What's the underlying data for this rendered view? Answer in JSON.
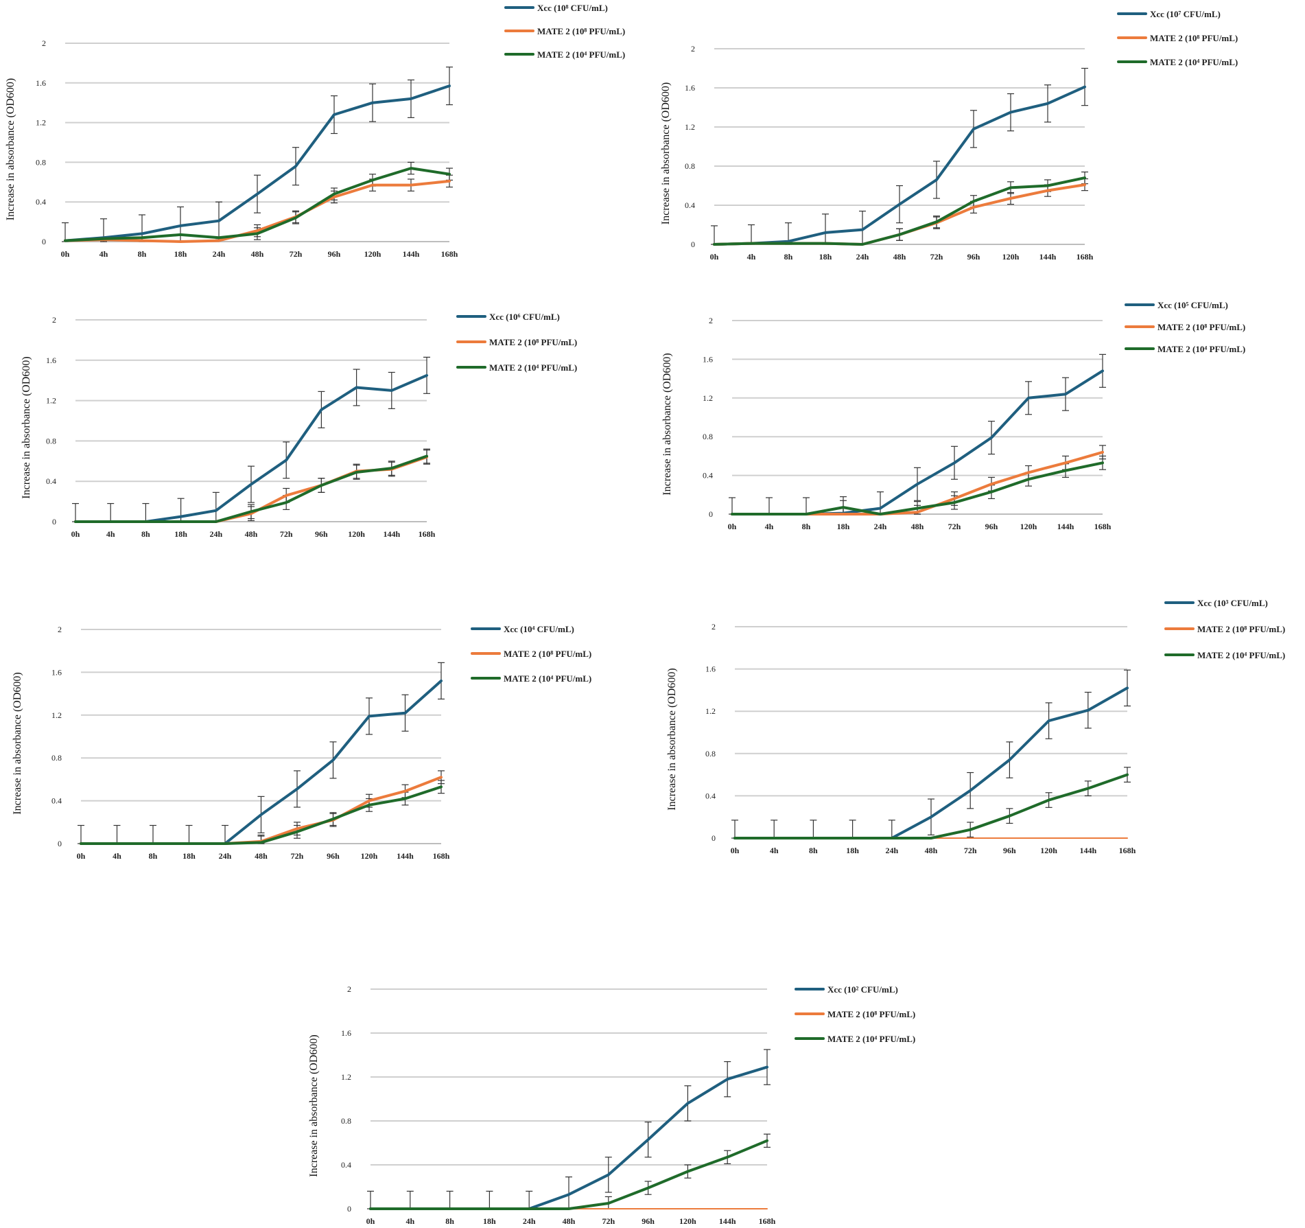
{
  "figure": {
    "colors": {
      "xcc": "#1f5f7f",
      "mate8": "#ec7b3c",
      "mate4": "#1f6b2a"
    },
    "y_axis_label": "Increase in absorbance (OD600)"
  },
  "chart_data": [
    {
      "type": "line",
      "panel": "top-left",
      "categories": [
        "0h",
        "4h",
        "8h",
        "18h",
        "24h",
        "48h",
        "72h",
        "96h",
        "120h",
        "144h",
        "168h"
      ],
      "ylabel": "Increase in absorbance (OD600)",
      "ylim": [
        0,
        2
      ],
      "yticks": [
        "0",
        "0.4",
        "0.8",
        "1.2",
        "1.6",
        "2"
      ],
      "legend_position": "top-right",
      "series": [
        {
          "name": "Xcc (10⁸ CFU/mL)",
          "color_key": "xcc",
          "values": [
            0.01,
            0.04,
            0.08,
            0.16,
            0.21,
            0.48,
            0.76,
            1.28,
            1.4,
            1.44,
            1.57
          ],
          "errors": [
            0.18,
            0.19,
            0.19,
            0.19,
            0.19,
            0.19,
            0.19,
            0.19,
            0.19,
            0.19,
            0.19
          ]
        },
        {
          "name": "MATE 2 (10⁸ PFU/mL)",
          "color_key": "mate8",
          "values": [
            0.01,
            0.02,
            0.01,
            0.0,
            0.01,
            0.11,
            0.25,
            0.45,
            0.57,
            0.57,
            0.61
          ],
          "errors": [
            0,
            0,
            0,
            0,
            0,
            0.06,
            0.06,
            0.06,
            0.06,
            0.06,
            0.06
          ]
        },
        {
          "name": "MATE 2 (10⁴ PFU/mL)",
          "color_key": "mate4",
          "values": [
            0.01,
            0.03,
            0.04,
            0.07,
            0.04,
            0.08,
            0.24,
            0.48,
            0.62,
            0.74,
            0.68
          ],
          "errors": [
            0,
            0,
            0,
            0,
            0,
            0.06,
            0.06,
            0.06,
            0.06,
            0.06,
            0.06
          ]
        }
      ]
    },
    {
      "type": "line",
      "panel": "top-right",
      "categories": [
        "0h",
        "4h",
        "8h",
        "18h",
        "24h",
        "48h",
        "72h",
        "96h",
        "120h",
        "144h",
        "168h"
      ],
      "ylabel": "Increase in absorbance (OD600)",
      "ylim": [
        0,
        2
      ],
      "yticks": [
        "0",
        "0.4",
        "0.8",
        "1.2",
        "1.6",
        "2"
      ],
      "legend_position": "top-right",
      "series": [
        {
          "name": "Xcc (10⁷ CFU/mL)",
          "color_key": "xcc",
          "values": [
            0.0,
            0.01,
            0.03,
            0.12,
            0.15,
            0.41,
            0.66,
            1.18,
            1.35,
            1.44,
            1.61
          ],
          "errors": [
            0.19,
            0.19,
            0.19,
            0.19,
            0.19,
            0.19,
            0.19,
            0.19,
            0.19,
            0.19,
            0.19
          ]
        },
        {
          "name": "MATE 2 (10⁸ PFU/mL)",
          "color_key": "mate8",
          "values": [
            0.0,
            0.01,
            0.01,
            0.01,
            0.0,
            0.1,
            0.22,
            0.38,
            0.47,
            0.55,
            0.61
          ],
          "errors": [
            0,
            0,
            0,
            0,
            0,
            0.06,
            0.06,
            0.06,
            0.06,
            0.06,
            0.06
          ]
        },
        {
          "name": "MATE 2 (10⁴ PFU/mL)",
          "color_key": "mate4",
          "values": [
            0.0,
            0.01,
            0.01,
            0.01,
            0.0,
            0.1,
            0.23,
            0.44,
            0.58,
            0.6,
            0.68
          ],
          "errors": [
            0,
            0,
            0,
            0,
            0,
            0.06,
            0.06,
            0.06,
            0.06,
            0.06,
            0.06
          ]
        }
      ]
    },
    {
      "type": "line",
      "panel": "middle-left",
      "categories": [
        "0h",
        "4h",
        "8h",
        "18h",
        "24h",
        "48h",
        "72h",
        "96h",
        "120h",
        "144h",
        "168h"
      ],
      "ylabel": "Increase in absorbance (OD600)",
      "ylim": [
        0,
        2
      ],
      "yticks": [
        "0",
        "0.4",
        "0.8",
        "1.2",
        "1.6",
        "2"
      ],
      "legend_position": "top-right",
      "series": [
        {
          "name": "Xcc (10⁶ CFU/mL)",
          "color_key": "xcc",
          "values": [
            0.0,
            0.0,
            0.0,
            0.05,
            0.11,
            0.37,
            0.61,
            1.11,
            1.33,
            1.3,
            1.45
          ],
          "errors": [
            0.18,
            0.18,
            0.18,
            0.18,
            0.18,
            0.18,
            0.18,
            0.18,
            0.18,
            0.18,
            0.18
          ]
        },
        {
          "name": "MATE 2 (10⁸ PFU/mL)",
          "color_key": "mate8",
          "values": [
            0.0,
            0.0,
            0.0,
            0.0,
            0.0,
            0.08,
            0.26,
            0.36,
            0.5,
            0.52,
            0.64
          ],
          "errors": [
            0,
            0,
            0,
            0,
            0,
            0.07,
            0.07,
            0.07,
            0.07,
            0.07,
            0.07
          ]
        },
        {
          "name": "MATE 2 (10⁴ PFU/mL)",
          "color_key": "mate4",
          "values": [
            0.0,
            0.0,
            0.0,
            0.0,
            0.0,
            0.1,
            0.19,
            0.36,
            0.49,
            0.53,
            0.65
          ],
          "errors": [
            0,
            0,
            0,
            0,
            0,
            0.07,
            0.07,
            0.07,
            0.07,
            0.07,
            0.07
          ]
        }
      ]
    },
    {
      "type": "line",
      "panel": "middle-right",
      "categories": [
        "0h",
        "4h",
        "8h",
        "18h",
        "24h",
        "48h",
        "72h",
        "96h",
        "120h",
        "144h",
        "168h"
      ],
      "ylabel": "Increase in absorbance (OD600)",
      "ylim": [
        0,
        2
      ],
      "yticks": [
        "0",
        "0.4",
        "0.8",
        "1.2",
        "1.6",
        "2"
      ],
      "legend_position": "top-right",
      "series": [
        {
          "name": "Xcc (10⁵ CFU/mL)",
          "color_key": "xcc",
          "values": [
            0.0,
            0.0,
            0.0,
            0.01,
            0.06,
            0.31,
            0.53,
            0.79,
            1.2,
            1.24,
            1.48
          ],
          "errors": [
            0.17,
            0.17,
            0.17,
            0.17,
            0.17,
            0.17,
            0.17,
            0.17,
            0.17,
            0.17,
            0.17
          ]
        },
        {
          "name": "MATE 2 (10⁸ PFU/mL)",
          "color_key": "mate8",
          "values": [
            0.0,
            0.0,
            0.0,
            0.0,
            0.0,
            0.02,
            0.16,
            0.31,
            0.43,
            0.53,
            0.64
          ],
          "errors": [
            0,
            0,
            0,
            0.07,
            0,
            0.07,
            0.07,
            0.07,
            0.07,
            0.07,
            0.07
          ]
        },
        {
          "name": "MATE 2 (10⁴ PFU/mL)",
          "color_key": "mate4",
          "values": [
            0.0,
            0.0,
            0.0,
            0.07,
            0.0,
            0.06,
            0.12,
            0.23,
            0.36,
            0.45,
            0.53
          ],
          "errors": [
            0,
            0,
            0,
            0.07,
            0,
            0.07,
            0.07,
            0.07,
            0.07,
            0.07,
            0.07
          ]
        }
      ]
    },
    {
      "type": "line",
      "panel": "lower-left",
      "categories": [
        "0h",
        "4h",
        "8h",
        "18h",
        "24h",
        "48h",
        "72h",
        "96h",
        "120h",
        "144h",
        "168h"
      ],
      "ylabel": "Increase in absorbance (OD600)",
      "ylim": [
        0,
        2
      ],
      "yticks": [
        "0",
        "0.4",
        "0.8",
        "1.2",
        "1.6",
        "2"
      ],
      "legend_position": "top-right",
      "series": [
        {
          "name": "Xcc (10⁴ CFU/mL)",
          "color_key": "xcc",
          "values": [
            0.0,
            0.0,
            0.0,
            0.0,
            0.0,
            0.27,
            0.51,
            0.78,
            1.19,
            1.22,
            1.52
          ],
          "errors": [
            0.17,
            0.17,
            0.17,
            0.17,
            0.17,
            0.17,
            0.17,
            0.17,
            0.17,
            0.17,
            0.17
          ]
        },
        {
          "name": "MATE 2 (10⁸ PFU/mL)",
          "color_key": "mate8",
          "values": [
            0.0,
            0.0,
            0.0,
            0.0,
            0.0,
            0.02,
            0.14,
            0.22,
            0.4,
            0.49,
            0.62
          ],
          "errors": [
            0,
            0,
            0,
            0,
            0,
            0.06,
            0.06,
            0.06,
            0.06,
            0.06,
            0.06
          ]
        },
        {
          "name": "MATE 2 (10⁴ PFU/mL)",
          "color_key": "mate4",
          "values": [
            0.0,
            0.0,
            0.0,
            0.0,
            0.0,
            0.01,
            0.11,
            0.23,
            0.36,
            0.42,
            0.53
          ],
          "errors": [
            0,
            0,
            0,
            0,
            0,
            0.06,
            0.06,
            0.06,
            0.06,
            0.06,
            0.06
          ]
        }
      ]
    },
    {
      "type": "line",
      "panel": "lower-right",
      "categories": [
        "0h",
        "4h",
        "8h",
        "18h",
        "24h",
        "48h",
        "72h",
        "96h",
        "120h",
        "144h",
        "168h"
      ],
      "ylabel": "Increase in absorbance (OD600)",
      "ylim": [
        0,
        2
      ],
      "yticks": [
        "0",
        "0.4",
        "0.8",
        "1.2",
        "1.6",
        "2"
      ],
      "legend_position": "top-right",
      "series": [
        {
          "name": "Xcc (10³ CFU/mL)",
          "color_key": "xcc",
          "values": [
            0.0,
            0.0,
            0.0,
            0.0,
            0.0,
            0.2,
            0.45,
            0.74,
            1.11,
            1.21,
            1.42
          ],
          "errors": [
            0.17,
            0.17,
            0.17,
            0.17,
            0.17,
            0.17,
            0.17,
            0.17,
            0.17,
            0.17,
            0.17
          ]
        },
        {
          "name": "MATE 2 (10⁸ PFU/mL)",
          "color_key": "mate8",
          "values": [
            0.0,
            0.0,
            0.0,
            0.0,
            0.0,
            0.0,
            0.0,
            0.0,
            0.0,
            0.0,
            0.0
          ],
          "errors": [
            0,
            0,
            0,
            0,
            0,
            0,
            0,
            0,
            0,
            0,
            0
          ]
        },
        {
          "name": "MATE 2 (10⁴ PFU/mL)",
          "color_key": "mate4",
          "values": [
            0.0,
            0.0,
            0.0,
            0.0,
            0.0,
            0.0,
            0.08,
            0.21,
            0.36,
            0.47,
            0.6
          ],
          "errors": [
            0,
            0,
            0,
            0,
            0,
            0,
            0.07,
            0.07,
            0.07,
            0.07,
            0.07
          ]
        }
      ]
    },
    {
      "type": "line",
      "panel": "bottom-center",
      "categories": [
        "0h",
        "4h",
        "8h",
        "18h",
        "24h",
        "48h",
        "72h",
        "96h",
        "120h",
        "144h",
        "168h"
      ],
      "ylabel": "Increase in absorbance (OD600)",
      "ylim": [
        0,
        2
      ],
      "yticks": [
        "0",
        "0.4",
        "0.8",
        "1.2",
        "1.6",
        "2"
      ],
      "legend_position": "top-right",
      "series": [
        {
          "name": "Xcc (10² CFU/mL)",
          "color_key": "xcc",
          "values": [
            0.0,
            0.0,
            0.0,
            0.0,
            0.0,
            0.13,
            0.31,
            0.63,
            0.96,
            1.18,
            1.29
          ],
          "errors": [
            0.16,
            0.16,
            0.16,
            0.16,
            0.16,
            0.16,
            0.16,
            0.16,
            0.16,
            0.16,
            0.16
          ]
        },
        {
          "name": "MATE 2 (10⁸ PFU/mL)",
          "color_key": "mate8",
          "values": [
            0.0,
            0.0,
            0.0,
            0.0,
            0.0,
            0.0,
            0.0,
            0.0,
            0.0,
            0.0,
            0.0
          ],
          "errors": [
            0,
            0,
            0,
            0,
            0,
            0,
            0,
            0,
            0,
            0,
            0
          ]
        },
        {
          "name": "MATE 2 (10⁴ PFU/mL)",
          "color_key": "mate4",
          "values": [
            0.0,
            0.0,
            0.0,
            0.0,
            0.0,
            0.0,
            0.05,
            0.19,
            0.34,
            0.47,
            0.62
          ],
          "errors": [
            0,
            0,
            0,
            0,
            0,
            0,
            0.06,
            0.06,
            0.06,
            0.06,
            0.06
          ]
        }
      ]
    }
  ]
}
